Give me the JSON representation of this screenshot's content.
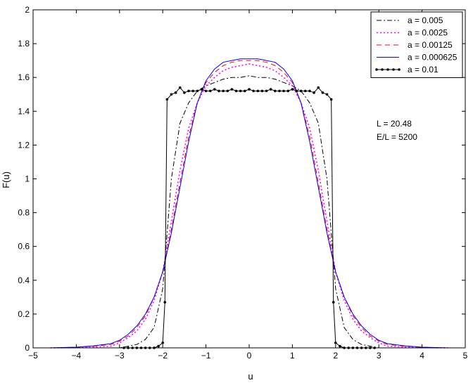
{
  "chart_data": {
    "type": "line",
    "title": "",
    "xlabel": "u",
    "ylabel": "F(u)",
    "xlim": [
      -5,
      5
    ],
    "ylim": [
      0,
      2
    ],
    "xticks": [
      -5,
      -4,
      -3,
      -2,
      -1,
      0,
      1,
      2,
      3,
      4,
      5
    ],
    "yticks": [
      0,
      0.2,
      0.4,
      0.6,
      0.8,
      1,
      1.2,
      1.4,
      1.6,
      1.8,
      2
    ],
    "xtick_labels": [
      "−5",
      "−4",
      "−3",
      "−2",
      "−1",
      "0",
      "1",
      "2",
      "3",
      "4",
      "5"
    ],
    "ytick_labels": [
      "0",
      "0.2",
      "0.4",
      "0.6",
      "0.8",
      "1",
      "1.2",
      "1.4",
      "1.6",
      "1.8",
      "2"
    ],
    "grid": false,
    "legend_position": "top-right",
    "annotations": [
      "L = 20.48",
      "E/L = 5200"
    ],
    "series": [
      {
        "name": "a = 0.005",
        "color": "#000000",
        "style": "dash-dot",
        "x": [
          -4.6,
          -3.8,
          -3.0,
          -2.8,
          -2.6,
          -2.4,
          -2.2,
          -2.0,
          -1.8,
          -1.6,
          -1.4,
          -1.2,
          -1.0,
          -0.8,
          -0.6,
          -0.4,
          -0.2,
          0.0,
          0.2,
          0.4,
          0.6,
          0.8,
          1.0,
          1.2,
          1.4,
          1.6,
          1.8,
          2.0,
          2.2,
          2.4,
          2.6,
          2.8,
          3.0,
          3.8,
          4.6
        ],
        "y": [
          0,
          0,
          0,
          0.01,
          0.02,
          0.05,
          0.12,
          0.35,
          1.0,
          1.33,
          1.45,
          1.52,
          1.55,
          1.57,
          1.59,
          1.6,
          1.6,
          1.61,
          1.6,
          1.6,
          1.59,
          1.57,
          1.55,
          1.52,
          1.45,
          1.33,
          1.0,
          0.35,
          0.12,
          0.05,
          0.02,
          0.01,
          0,
          0,
          0
        ]
      },
      {
        "name": "a = 0.0025",
        "color": "#ff00ff",
        "style": "dotted",
        "x": [
          -4.6,
          -4.0,
          -3.6,
          -3.2,
          -3.0,
          -2.8,
          -2.6,
          -2.4,
          -2.2,
          -2.0,
          -1.8,
          -1.6,
          -1.4,
          -1.2,
          -1.0,
          -0.8,
          -0.6,
          -0.4,
          -0.2,
          0.0,
          0.2,
          0.4,
          0.6,
          0.8,
          1.0,
          1.2,
          1.4,
          1.6,
          1.8,
          2.0,
          2.2,
          2.4,
          2.6,
          2.8,
          3.0,
          3.2,
          3.6,
          4.0,
          4.6
        ],
        "y": [
          0,
          0.002,
          0.005,
          0.01,
          0.03,
          0.06,
          0.1,
          0.17,
          0.28,
          0.45,
          0.75,
          1.05,
          1.3,
          1.45,
          1.55,
          1.6,
          1.64,
          1.66,
          1.67,
          1.68,
          1.67,
          1.66,
          1.64,
          1.6,
          1.55,
          1.45,
          1.3,
          1.05,
          0.75,
          0.45,
          0.28,
          0.17,
          0.1,
          0.06,
          0.03,
          0.01,
          0.005,
          0.002,
          0
        ]
      },
      {
        "name": "a = 0.00125",
        "color": "#ff0000",
        "style": "dashed",
        "x": [
          -4.6,
          -4.0,
          -3.6,
          -3.2,
          -3.0,
          -2.8,
          -2.6,
          -2.4,
          -2.2,
          -2.0,
          -1.8,
          -1.6,
          -1.4,
          -1.2,
          -1.0,
          -0.8,
          -0.6,
          -0.4,
          -0.2,
          0.0,
          0.2,
          0.4,
          0.6,
          0.8,
          1.0,
          1.2,
          1.4,
          1.6,
          1.8,
          2.0,
          2.2,
          2.4,
          2.6,
          2.8,
          3.0,
          3.2,
          3.6,
          4.0,
          4.6
        ],
        "y": [
          0,
          0.003,
          0.01,
          0.02,
          0.04,
          0.07,
          0.12,
          0.19,
          0.3,
          0.45,
          0.7,
          0.98,
          1.25,
          1.45,
          1.57,
          1.63,
          1.67,
          1.69,
          1.7,
          1.7,
          1.7,
          1.69,
          1.67,
          1.63,
          1.57,
          1.45,
          1.25,
          0.98,
          0.7,
          0.45,
          0.3,
          0.19,
          0.12,
          0.07,
          0.04,
          0.02,
          0.01,
          0.003,
          0
        ]
      },
      {
        "name": "a = 0.000625",
        "color": "#0000ff",
        "style": "solid",
        "x": [
          -4.6,
          -4.0,
          -3.6,
          -3.2,
          -3.0,
          -2.8,
          -2.6,
          -2.4,
          -2.2,
          -2.0,
          -1.8,
          -1.6,
          -1.4,
          -1.2,
          -1.0,
          -0.8,
          -0.6,
          -0.4,
          -0.2,
          0.0,
          0.2,
          0.4,
          0.6,
          0.8,
          1.0,
          1.2,
          1.4,
          1.6,
          1.8,
          2.0,
          2.2,
          2.4,
          2.6,
          2.8,
          3.0,
          3.2,
          3.6,
          4.0,
          4.6
        ],
        "y": [
          0,
          0.004,
          0.012,
          0.025,
          0.045,
          0.08,
          0.13,
          0.2,
          0.3,
          0.45,
          0.68,
          0.95,
          1.22,
          1.45,
          1.58,
          1.65,
          1.69,
          1.7,
          1.71,
          1.71,
          1.71,
          1.7,
          1.69,
          1.65,
          1.58,
          1.45,
          1.22,
          0.95,
          0.68,
          0.45,
          0.3,
          0.2,
          0.13,
          0.08,
          0.045,
          0.025,
          0.012,
          0.004,
          0
        ]
      },
      {
        "name": "a = 0.01",
        "color": "#000000",
        "style": "solid-dot-markers",
        "x": [
          -2.9,
          -2.8,
          -2.7,
          -2.6,
          -2.5,
          -2.4,
          -2.3,
          -2.2,
          -2.1,
          -2.0,
          -1.95,
          -1.9,
          -1.8,
          -1.7,
          -1.6,
          -1.5,
          -1.4,
          -1.3,
          -1.2,
          -1.1,
          -1.0,
          -0.9,
          -0.8,
          -0.7,
          -0.6,
          -0.5,
          -0.4,
          -0.3,
          -0.2,
          -0.1,
          0.0,
          0.1,
          0.2,
          0.3,
          0.4,
          0.5,
          0.6,
          0.7,
          0.8,
          0.9,
          1.0,
          1.1,
          1.2,
          1.3,
          1.4,
          1.5,
          1.6,
          1.7,
          1.8,
          1.9,
          1.95,
          2.0,
          2.1,
          2.2,
          2.3,
          2.4,
          2.5,
          2.6,
          2.7,
          2.8,
          2.9
        ],
        "y": [
          0,
          0,
          0,
          0,
          0,
          0,
          0,
          0,
          0.01,
          0.03,
          0.27,
          1.47,
          1.5,
          1.51,
          1.54,
          1.51,
          1.52,
          1.52,
          1.52,
          1.53,
          1.52,
          1.52,
          1.53,
          1.52,
          1.52,
          1.52,
          1.53,
          1.52,
          1.52,
          1.52,
          1.53,
          1.52,
          1.52,
          1.52,
          1.52,
          1.53,
          1.52,
          1.52,
          1.52,
          1.52,
          1.53,
          1.52,
          1.52,
          1.52,
          1.52,
          1.51,
          1.54,
          1.51,
          1.5,
          1.47,
          0.27,
          0.03,
          0.01,
          0,
          0,
          0,
          0,
          0,
          0,
          0,
          0
        ]
      }
    ]
  }
}
